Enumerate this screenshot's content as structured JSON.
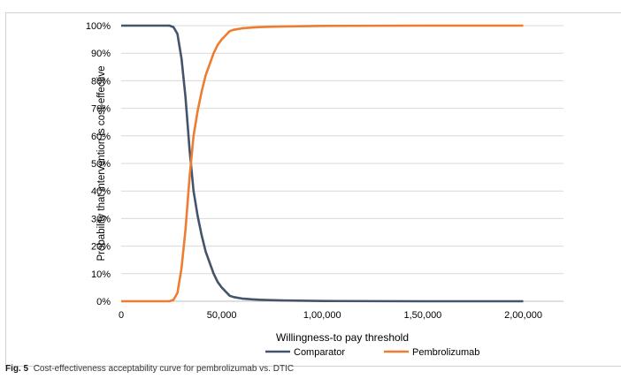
{
  "caption": {
    "label": "Fig. 5",
    "text": "Cost-effectiveness acceptability curve for pembrolizumab vs. DTIC"
  },
  "chart_data": {
    "type": "line",
    "xlabel": "Willingness-to pay threshold",
    "ylabel": "Probability that intervention is cost-effective",
    "xlim": [
      0,
      220000
    ],
    "ylim": [
      0,
      1
    ],
    "x_ticks": [
      0,
      50000,
      100000,
      150000,
      200000
    ],
    "x_tick_labels": [
      "0",
      "50,000",
      "1,00,000",
      "1,50,000",
      "2,00,000"
    ],
    "y_ticks": [
      0,
      0.1,
      0.2,
      0.3,
      0.4,
      0.5,
      0.6,
      0.7,
      0.8,
      0.9,
      1.0
    ],
    "y_tick_labels": [
      "0%",
      "10%",
      "20%",
      "30%",
      "40%",
      "50%",
      "60%",
      "70%",
      "80%",
      "90%",
      "100%"
    ],
    "grid": "horizontal",
    "legend_position": "bottom",
    "series": [
      {
        "name": "Comparator",
        "color": "#44546a",
        "points": [
          [
            0,
            1.0
          ],
          [
            20000,
            1.0
          ],
          [
            24000,
            1.0
          ],
          [
            26000,
            0.995
          ],
          [
            28000,
            0.97
          ],
          [
            30000,
            0.88
          ],
          [
            32000,
            0.74
          ],
          [
            34000,
            0.55
          ],
          [
            36000,
            0.4
          ],
          [
            38000,
            0.31
          ],
          [
            40000,
            0.24
          ],
          [
            42000,
            0.18
          ],
          [
            44000,
            0.14
          ],
          [
            46000,
            0.1
          ],
          [
            48000,
            0.07
          ],
          [
            50000,
            0.05
          ],
          [
            52000,
            0.035
          ],
          [
            54000,
            0.02
          ],
          [
            56000,
            0.015
          ],
          [
            60000,
            0.01
          ],
          [
            65000,
            0.007
          ],
          [
            70000,
            0.005
          ],
          [
            80000,
            0.003
          ],
          [
            100000,
            0.001
          ],
          [
            150000,
            0.0
          ],
          [
            200000,
            0.0
          ]
        ]
      },
      {
        "name": "Pembrolizumab",
        "color": "#ed7d31",
        "points": [
          [
            0,
            0.0
          ],
          [
            20000,
            0.0
          ],
          [
            24000,
            0.0
          ],
          [
            26000,
            0.005
          ],
          [
            28000,
            0.03
          ],
          [
            30000,
            0.12
          ],
          [
            32000,
            0.26
          ],
          [
            34000,
            0.45
          ],
          [
            36000,
            0.6
          ],
          [
            38000,
            0.69
          ],
          [
            40000,
            0.76
          ],
          [
            42000,
            0.82
          ],
          [
            44000,
            0.86
          ],
          [
            46000,
            0.9
          ],
          [
            48000,
            0.93
          ],
          [
            50000,
            0.95
          ],
          [
            52000,
            0.965
          ],
          [
            54000,
            0.98
          ],
          [
            56000,
            0.985
          ],
          [
            60000,
            0.99
          ],
          [
            65000,
            0.993
          ],
          [
            70000,
            0.995
          ],
          [
            80000,
            0.997
          ],
          [
            100000,
            0.999
          ],
          [
            150000,
            1.0
          ],
          [
            200000,
            1.0
          ]
        ]
      }
    ]
  }
}
